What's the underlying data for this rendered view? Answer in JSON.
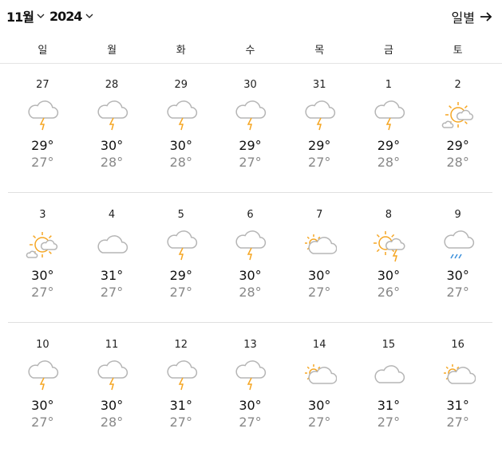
{
  "header": {
    "month": "11월",
    "year": "2024",
    "daily_link": "일별"
  },
  "weekdays": [
    "일",
    "월",
    "화",
    "수",
    "목",
    "금",
    "토"
  ],
  "colors": {
    "sun": "#f5a623",
    "cloud": "#b5b5b5",
    "rain": "#3b8fdb",
    "bolt": "#f5a623"
  },
  "weeks": [
    [
      {
        "date": "27",
        "icon": "thunder",
        "hi": "29°",
        "lo": "27°"
      },
      {
        "date": "28",
        "icon": "thunder",
        "hi": "30°",
        "lo": "28°"
      },
      {
        "date": "29",
        "icon": "thunder",
        "hi": "30°",
        "lo": "28°"
      },
      {
        "date": "30",
        "icon": "thunder",
        "hi": "29°",
        "lo": "27°"
      },
      {
        "date": "31",
        "icon": "thunder",
        "hi": "29°",
        "lo": "27°"
      },
      {
        "date": "1",
        "icon": "thunder",
        "hi": "29°",
        "lo": "28°"
      },
      {
        "date": "2",
        "icon": "sunny-few-clouds",
        "hi": "29°",
        "lo": "28°"
      }
    ],
    [
      {
        "date": "3",
        "icon": "sunny-few-clouds",
        "hi": "30°",
        "lo": "27°"
      },
      {
        "date": "4",
        "icon": "cloud",
        "hi": "31°",
        "lo": "27°"
      },
      {
        "date": "5",
        "icon": "thunder",
        "hi": "29°",
        "lo": "27°"
      },
      {
        "date": "6",
        "icon": "thunder",
        "hi": "30°",
        "lo": "28°"
      },
      {
        "date": "7",
        "icon": "partly-cloudy",
        "hi": "30°",
        "lo": "27°"
      },
      {
        "date": "8",
        "icon": "sun-thunder",
        "hi": "30°",
        "lo": "26°"
      },
      {
        "date": "9",
        "icon": "rain",
        "hi": "30°",
        "lo": "27°"
      }
    ],
    [
      {
        "date": "10",
        "icon": "thunder",
        "hi": "30°",
        "lo": "27°"
      },
      {
        "date": "11",
        "icon": "thunder",
        "hi": "30°",
        "lo": "28°"
      },
      {
        "date": "12",
        "icon": "thunder",
        "hi": "31°",
        "lo": "27°"
      },
      {
        "date": "13",
        "icon": "thunder",
        "hi": "30°",
        "lo": "27°"
      },
      {
        "date": "14",
        "icon": "partly-cloudy",
        "hi": "30°",
        "lo": "27°"
      },
      {
        "date": "15",
        "icon": "cloud",
        "hi": "31°",
        "lo": "27°"
      },
      {
        "date": "16",
        "icon": "partly-cloudy",
        "hi": "31°",
        "lo": "27°"
      }
    ]
  ]
}
